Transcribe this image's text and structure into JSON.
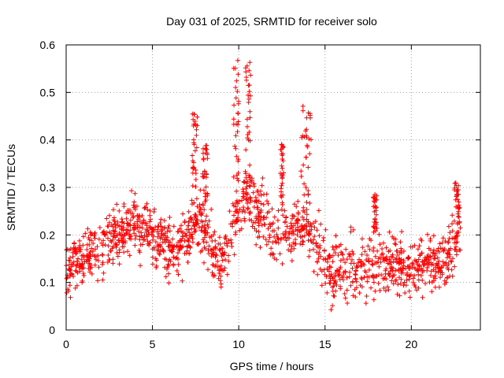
{
  "chart_data": {
    "type": "scatter",
    "title": "Day 031 of 2025, SRMTID for receiver solo",
    "xlabel": "GPS time / hours",
    "ylabel": "SRMTID / TECUs",
    "xlim": [
      0,
      24
    ],
    "ylim": [
      0,
      0.6
    ],
    "x_ticks": [
      0,
      5,
      10,
      15,
      20
    ],
    "y_ticks": [
      0,
      0.1,
      0.2,
      0.3,
      0.4,
      0.5,
      0.6
    ],
    "x_tick_labels": [
      "0",
      "5",
      "10",
      "15",
      "20"
    ],
    "y_tick_labels": [
      "0",
      "0.1",
      "0.2",
      "0.3",
      "0.4",
      "0.5",
      "0.6"
    ],
    "grid": true,
    "marker": "+",
    "color": "#ff0000",
    "trend": [
      [
        0.0,
        0.14
      ],
      [
        0.5,
        0.14
      ],
      [
        1.0,
        0.15
      ],
      [
        1.5,
        0.16
      ],
      [
        2.0,
        0.17
      ],
      [
        2.5,
        0.19
      ],
      [
        3.0,
        0.2
      ],
      [
        3.5,
        0.21
      ],
      [
        4.0,
        0.22
      ],
      [
        4.5,
        0.21
      ],
      [
        5.0,
        0.2
      ],
      [
        5.5,
        0.19
      ],
      [
        6.0,
        0.17
      ],
      [
        6.5,
        0.17
      ],
      [
        7.0,
        0.19
      ],
      [
        7.5,
        0.24
      ],
      [
        8.0,
        0.22
      ],
      [
        8.5,
        0.16
      ],
      [
        9.0,
        0.15
      ],
      [
        9.5,
        0.19
      ],
      [
        10.0,
        0.26
      ],
      [
        10.5,
        0.28
      ],
      [
        11.0,
        0.25
      ],
      [
        11.5,
        0.23
      ],
      [
        12.0,
        0.21
      ],
      [
        12.5,
        0.2
      ],
      [
        13.0,
        0.21
      ],
      [
        13.5,
        0.23
      ],
      [
        14.0,
        0.22
      ],
      [
        14.5,
        0.18
      ],
      [
        15.0,
        0.14
      ],
      [
        15.5,
        0.11
      ],
      [
        16.0,
        0.12
      ],
      [
        16.5,
        0.13
      ],
      [
        17.0,
        0.12
      ],
      [
        17.5,
        0.13
      ],
      [
        18.0,
        0.13
      ],
      [
        18.5,
        0.14
      ],
      [
        19.0,
        0.15
      ],
      [
        19.5,
        0.13
      ],
      [
        20.0,
        0.12
      ],
      [
        20.5,
        0.14
      ],
      [
        21.0,
        0.15
      ],
      [
        21.5,
        0.14
      ],
      [
        22.0,
        0.15
      ],
      [
        22.5,
        0.18
      ],
      [
        22.8,
        0.2
      ]
    ],
    "scatter_spread": 0.06,
    "spikes": [
      {
        "x": [
          7.3,
          7.6
        ],
        "y": [
          0.28,
          0.46
        ]
      },
      {
        "x": [
          7.9,
          8.2
        ],
        "y": [
          0.26,
          0.39
        ]
      },
      {
        "x": [
          9.7,
          10.0
        ],
        "y": [
          0.3,
          0.585
        ]
      },
      {
        "x": [
          10.4,
          10.7
        ],
        "y": [
          0.3,
          0.575
        ]
      },
      {
        "x": [
          12.4,
          12.6
        ],
        "y": [
          0.25,
          0.395
        ]
      },
      {
        "x": [
          13.6,
          14.2
        ],
        "y": [
          0.28,
          0.475
        ]
      },
      {
        "x": [
          17.8,
          18.0
        ],
        "y": [
          0.2,
          0.29
        ]
      },
      {
        "x": [
          22.5,
          22.8
        ],
        "y": [
          0.22,
          0.31
        ]
      }
    ],
    "x_end": 22.85
  }
}
